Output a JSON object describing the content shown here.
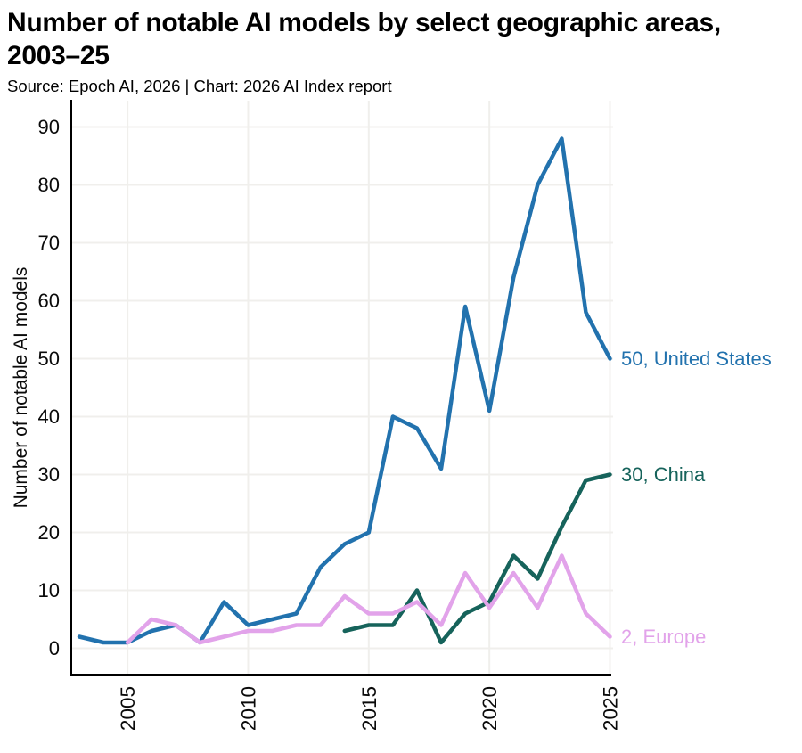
{
  "header": {
    "title": "Number of notable AI models by select geographic areas, 2003–25",
    "source_line": "Source: Epoch AI, 2026 | Chart: 2026 AI Index report"
  },
  "chart_data": {
    "type": "line",
    "title": "Number of notable AI models by select geographic areas, 2003–25",
    "xlabel": "",
    "ylabel": "Number of notable AI models",
    "x_range": [
      2003,
      2025
    ],
    "ylim": [
      0,
      90
    ],
    "xticks": [
      2005,
      2010,
      2015,
      2020,
      2025
    ],
    "yticks": [
      0,
      10,
      20,
      30,
      40,
      50,
      60,
      70,
      80,
      90
    ],
    "grid": true,
    "legend_position": "right-end-labels",
    "colors": {
      "grid": "#f0efec",
      "axis": "#000000",
      "tick_text": "#0a0a0a"
    },
    "series": [
      {
        "name": "United States",
        "color": "#2272ae",
        "end_label": "50, United States",
        "start_year": 2003,
        "values": [
          2,
          1,
          1,
          3,
          4,
          1,
          8,
          4,
          5,
          6,
          14,
          18,
          20,
          40,
          38,
          31,
          59,
          41,
          64,
          80,
          88,
          58,
          50
        ]
      },
      {
        "name": "China",
        "color": "#16635b",
        "end_label": "30, China",
        "start_year": 2014,
        "values": [
          3,
          4,
          4,
          10,
          1,
          6,
          8,
          16,
          12,
          21,
          29,
          30
        ]
      },
      {
        "name": "Europe",
        "color": "#e2a3ea",
        "end_label": "2, Europe",
        "start_year": 2005,
        "values": [
          1,
          5,
          4,
          1,
          2,
          3,
          3,
          4,
          4,
          9,
          6,
          6,
          8,
          4,
          13,
          7,
          13,
          7,
          16,
          6,
          2
        ]
      }
    ]
  }
}
